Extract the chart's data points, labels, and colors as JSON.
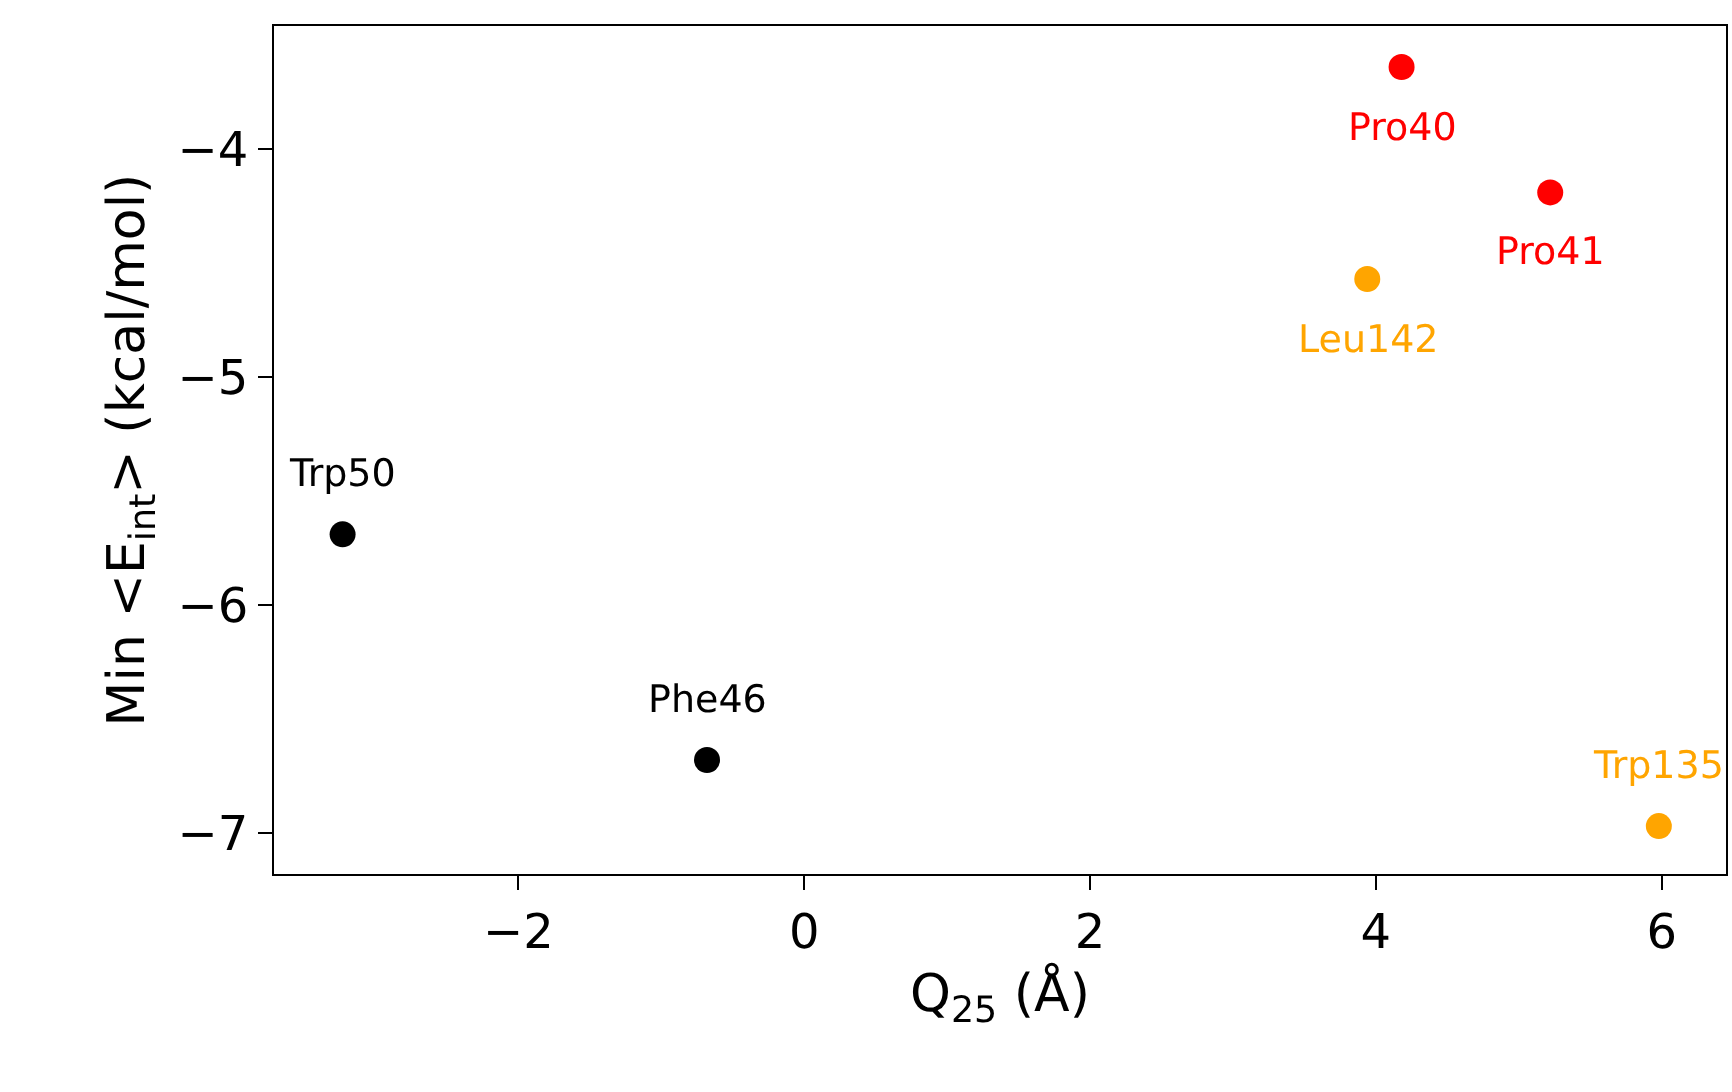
{
  "chart_data": {
    "type": "scatter",
    "xlabel": "Q$_{25}$ (Å)",
    "ylabel": "Min <E$_{int}$> (kcal/mol)",
    "series": [
      {
        "color": "#000000",
        "x": [
          -3.23,
          -0.68
        ],
        "values": [
          -5.69,
          -6.68
        ]
      },
      {
        "color": "#ff0000",
        "x": [
          4.18,
          5.22
        ],
        "values": [
          -3.64,
          -4.19
        ]
      },
      {
        "color": "#ffa500",
        "x": [
          3.94,
          5.98
        ],
        "values": [
          -4.57,
          -6.97
        ]
      }
    ],
    "annotations": [
      {
        "text": "Trp50",
        "x": -3.23,
        "y": -5.69
      },
      {
        "text": "Phe46",
        "x": -0.68,
        "y": -6.68
      },
      {
        "text": "Pro40",
        "x": 4.18,
        "y": -3.64
      },
      {
        "text": "Pro41",
        "x": 5.22,
        "y": -4.19
      },
      {
        "text": "Leu142",
        "x": 3.94,
        "y": -4.57
      },
      {
        "text": "Trp135",
        "x": 5.98,
        "y": -6.97
      }
    ],
    "xlim": [
      -3.71,
      6.45
    ],
    "xticks": [
      {
        "value": -2,
        "label": "−2"
      },
      0,
      2,
      4,
      6
    ],
    "ylim": [
      -7.18,
      -3.46
    ],
    "yticks": [
      {
        "value": -7,
        "label": "−7"
      },
      {
        "value": -6,
        "label": "−6"
      },
      {
        "value": -5,
        "label": "−5"
      },
      {
        "value": -4,
        "label": "−4"
      }
    ],
    "marker": "circle"
  }
}
